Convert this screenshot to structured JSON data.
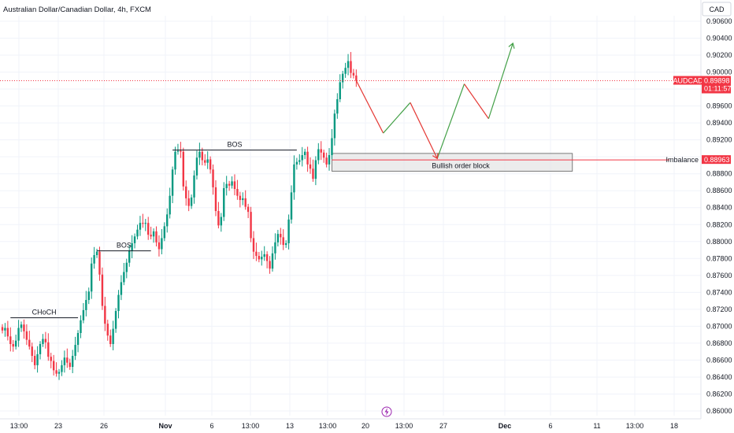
{
  "header": {
    "title": "Australian Dollar/Canadian Dollar, 4h, FXCM",
    "currency_button": "CAD"
  },
  "colors": {
    "up": "#089981",
    "down": "#f23645",
    "grid": "#f0f3fa",
    "text": "#131722",
    "path_down": "#e53935",
    "path_up": "#43a047",
    "zone_fill": "#e6e6e6",
    "zone_border": "#7a7a7a",
    "price_tag": "#f23645"
  },
  "price_tags": {
    "symbol": "AUDCAD",
    "last_price": "0.89898",
    "countdown": "01:11:57",
    "imbalance_label": "Imbalance",
    "imbalance_price": "0.88963"
  },
  "annotations": {
    "choch": "CHoCH",
    "bos_1": "BOS",
    "bos_2": "BOS",
    "order_block": "Bullish order block"
  },
  "chart_data": {
    "type": "candlestick",
    "symbol": "AUDCAD",
    "timeframe": "4h",
    "source": "FXCM",
    "y_ticks": [
      0.906,
      0.904,
      0.902,
      0.9,
      0.898,
      0.896,
      0.894,
      0.892,
      0.89,
      0.888,
      0.886,
      0.884,
      0.882,
      0.88,
      0.878,
      0.876,
      0.874,
      0.872,
      0.87,
      0.868,
      0.866,
      0.864,
      0.862,
      0.86
    ],
    "y_tick_labels": [
      "0.90600",
      "0.90400",
      "0.90200",
      "0.90000",
      "",
      "0.89600",
      "0.89400",
      "0.89200",
      "",
      "0.88800",
      "0.88600",
      "0.88400",
      "0.88200",
      "0.88000",
      "0.87800",
      "0.87600",
      "0.87400",
      "0.87200",
      "0.87000",
      "0.86800",
      "0.86600",
      "0.86400",
      "0.86200",
      "0.86000"
    ],
    "x_tick_labels": [
      "13:00",
      "23",
      "26",
      "Nov",
      "6",
      "13:00",
      "13",
      "13:00",
      "20",
      "13:00",
      "27",
      "Dec",
      "6",
      "11",
      "13:00",
      "18"
    ],
    "x_tick_bold": [
      false,
      false,
      false,
      true,
      false,
      false,
      false,
      false,
      false,
      false,
      false,
      true,
      false,
      false,
      false,
      false
    ],
    "ylim": [
      0.8598,
      0.9072
    ],
    "candle_count": 132,
    "closes": [
      0.8695,
      0.8698,
      0.8688,
      0.8679,
      0.8676,
      0.8683,
      0.8698,
      0.8702,
      0.8694,
      0.8684,
      0.8676,
      0.8665,
      0.8654,
      0.8667,
      0.8679,
      0.8685,
      0.8681,
      0.8664,
      0.8659,
      0.8648,
      0.8644,
      0.8646,
      0.8654,
      0.8663,
      0.8657,
      0.8652,
      0.8665,
      0.8678,
      0.8692,
      0.8707,
      0.8719,
      0.8731,
      0.8741,
      0.8774,
      0.8784,
      0.8788,
      0.8761,
      0.8724,
      0.8703,
      0.8689,
      0.8679,
      0.8697,
      0.8718,
      0.8737,
      0.8752,
      0.8764,
      0.8775,
      0.8789,
      0.8798,
      0.8806,
      0.8814,
      0.8822,
      0.8821,
      0.8822,
      0.8808,
      0.8806,
      0.8812,
      0.8799,
      0.8791,
      0.8804,
      0.8818,
      0.8832,
      0.8854,
      0.8885,
      0.8906,
      0.8907,
      0.8906,
      0.8865,
      0.8851,
      0.8842,
      0.8852,
      0.8878,
      0.8899,
      0.8906,
      0.8896,
      0.8893,
      0.8897,
      0.8885,
      0.8864,
      0.8836,
      0.8819,
      0.8829,
      0.8863,
      0.8868,
      0.8866,
      0.8871,
      0.8862,
      0.8854,
      0.8849,
      0.8851,
      0.8841,
      0.8835,
      0.8804,
      0.8788,
      0.8783,
      0.8779,
      0.8782,
      0.8785,
      0.8777,
      0.8768,
      0.8786,
      0.8799,
      0.8809,
      0.8805,
      0.8796,
      0.8798,
      0.8826,
      0.8858,
      0.8891,
      0.8894,
      0.8896,
      0.8902,
      0.8906,
      0.8891,
      0.8886,
      0.8874,
      0.8896,
      0.8909,
      0.8905,
      0.8899,
      0.8891,
      0.8902,
      0.8922,
      0.8951,
      0.8968,
      0.8988,
      0.8998,
      0.9005,
      0.9013,
      0.8999,
      0.8996,
      0.899
    ],
    "projected_path": [
      {
        "candle": 131,
        "price": 0.899
      },
      {
        "candle": 141,
        "price": 0.8928
      },
      {
        "candle": 151,
        "price": 0.8964
      },
      {
        "candle": 161,
        "price": 0.8898
      },
      {
        "candle": 171,
        "price": 0.8986
      },
      {
        "candle": 180,
        "price": 0.8945
      },
      {
        "candle": 189,
        "price": 0.9034
      }
    ],
    "structure_levels": [
      {
        "label": "CHoCH",
        "price": 0.871,
        "from_candle": 3,
        "to_candle": 28
      },
      {
        "label": "BOS",
        "price": 0.8789,
        "from_candle": 35,
        "to_candle": 55
      },
      {
        "label": "BOS",
        "price": 0.8908,
        "from_candle": 63,
        "to_candle": 109
      }
    ],
    "order_block": {
      "label": "Bullish order block",
      "price_top": 0.8904,
      "price_bottom": 0.8883,
      "from_candle": 122,
      "to_candle": 211
    },
    "imbalance_level": 0.88963,
    "last_price_level": 0.89898
  }
}
